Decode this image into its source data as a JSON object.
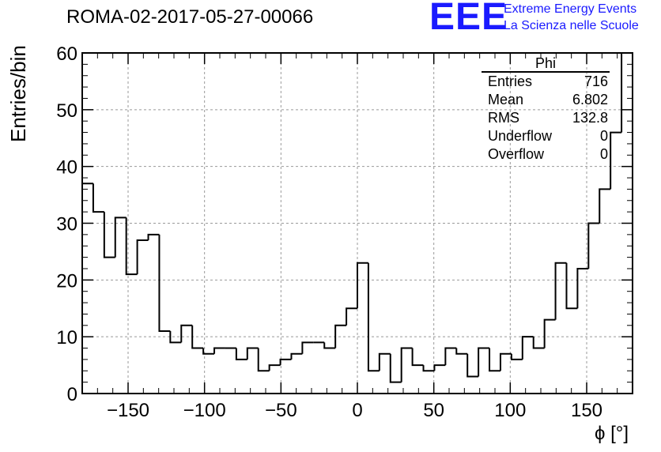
{
  "title": "ROMA-02-2017-05-27-00066",
  "logo": {
    "mark": "EEE",
    "line1": "Extreme Energy Events",
    "line2": "La Scienza nelle Scuole",
    "color": "#1a1aff"
  },
  "stats": {
    "title": "Phi",
    "rows": [
      {
        "label": "Entries",
        "value": "716"
      },
      {
        "label": "Mean",
        "value": "6.802"
      },
      {
        "label": "RMS",
        "value": "132.8"
      },
      {
        "label": "Underflow",
        "value": "0"
      },
      {
        "label": "Overflow",
        "value": "0"
      }
    ]
  },
  "chart_data": {
    "type": "bar",
    "histogram": "step",
    "title": "ROMA-02-2017-05-27-00066",
    "xlabel": "ϕ [°]",
    "ylabel": "Entries/bin",
    "xlim": [
      -180,
      180
    ],
    "ylim": [
      0,
      60
    ],
    "bin_width": 7.2,
    "xticks": [
      -150,
      -100,
      -50,
      0,
      50,
      100,
      150
    ],
    "xtick_labels": [
      "−150",
      "−100",
      "−50",
      "0",
      "50",
      "100",
      "150"
    ],
    "yticks": [
      0,
      10,
      20,
      30,
      40,
      50,
      60
    ],
    "ytick_labels": [
      "0",
      "10",
      "20",
      "30",
      "40",
      "50",
      "60"
    ],
    "grid": true,
    "values": [
      37,
      32,
      24,
      31,
      21,
      27,
      28,
      11,
      9,
      12,
      8,
      7,
      8,
      8,
      6,
      8,
      4,
      5,
      6,
      7,
      9,
      9,
      8,
      12,
      15,
      23,
      4,
      7,
      2,
      8,
      5,
      4,
      5,
      8,
      7,
      3,
      8,
      4,
      7,
      6,
      10,
      8,
      13,
      23,
      15,
      22,
      30,
      36,
      46,
      60
    ]
  }
}
